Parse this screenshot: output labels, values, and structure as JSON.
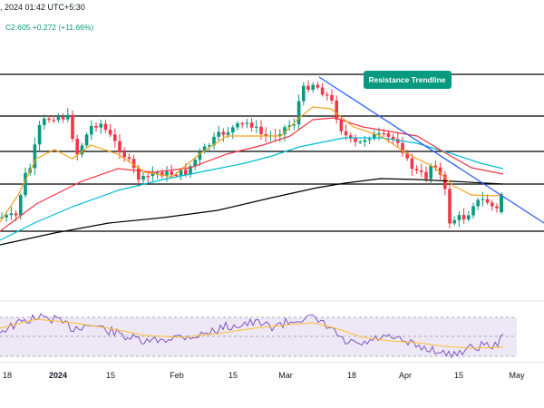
{
  "header": {
    "time": ", 2024 01:42 UTC+5:30",
    "close_label": "C2.605",
    "change": "+0.272 (+11.66%)"
  },
  "annotation": {
    "label": "Resistance Trendline"
  },
  "colors": {
    "up": "#089981",
    "down": "#f23645",
    "ema_short": "#f7a21b",
    "ema_mid": "#f23645",
    "ema_long": "#00bcd4",
    "ema_200": "#000000",
    "rsi": "#7e57c2",
    "rsi_ma": "#fbc02d",
    "rsi_band": "#ede7f6",
    "trendline": "#2962ff",
    "annotation_bg": "#089981"
  },
  "chart_data": {
    "type": "candlestick",
    "x_axis_labels": [
      "18",
      "2024",
      "15",
      "Feb",
      "15",
      "Mar",
      "18",
      "Apr",
      "15",
      "May"
    ],
    "x_axis_bold": [
      "2024"
    ],
    "horizontal_levels": 6,
    "indicators": [
      "EMA short",
      "EMA mid",
      "EMA long",
      "EMA 200",
      "RSI",
      "RSI MA"
    ],
    "annotation": "Resistance Trendline",
    "last_close": 2.605,
    "change": 0.272,
    "change_pct": 11.66
  }
}
